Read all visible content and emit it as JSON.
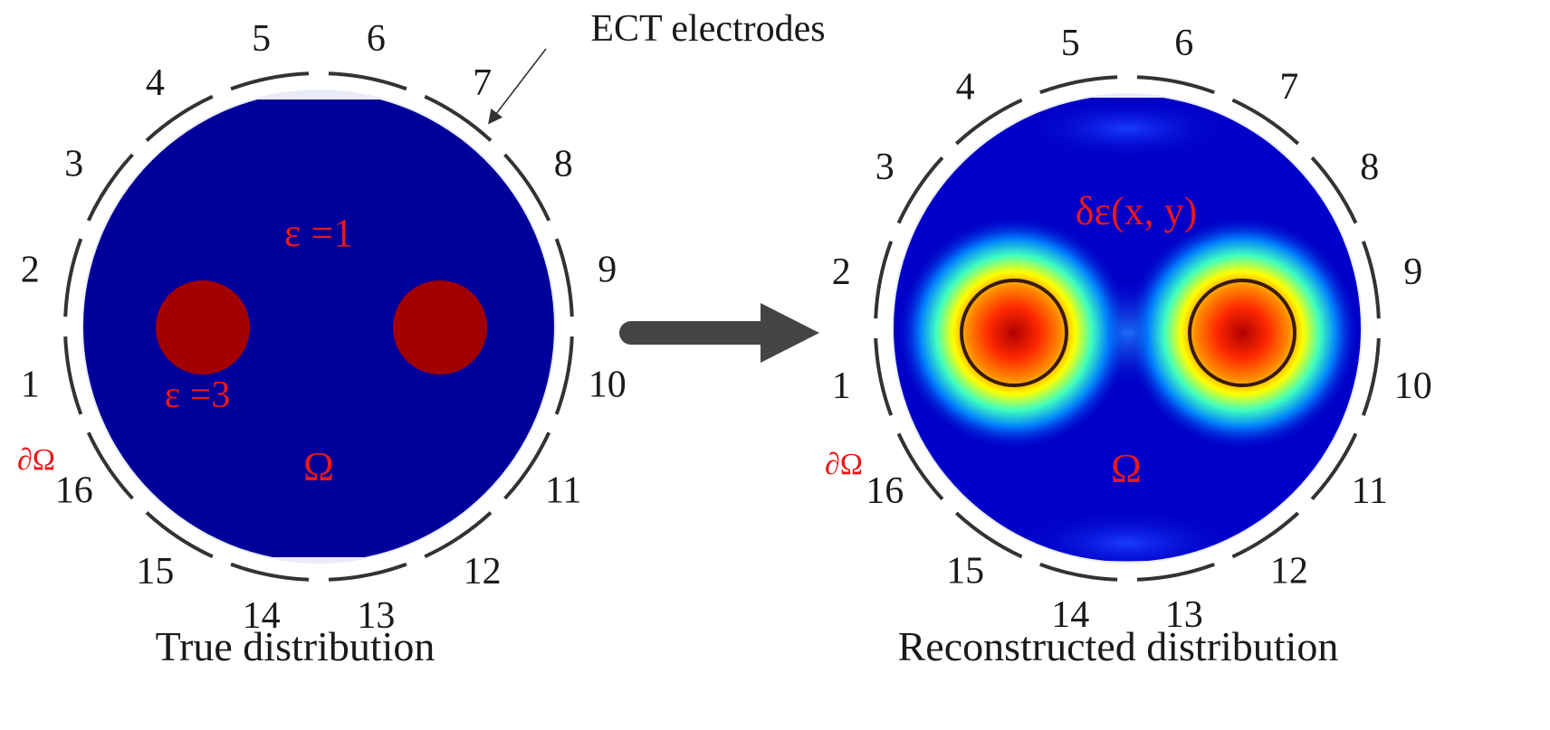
{
  "callout": {
    "text": "ECT electrodes"
  },
  "left_panel": {
    "caption": "True distribution",
    "background_label": "ε =1",
    "inclusion_label": "ε =3",
    "domain_label": "Ω",
    "boundary_label": "∂Ω"
  },
  "right_panel": {
    "caption": "Reconstructed distribution",
    "field_label": "δε(x, y)",
    "domain_label": "Ω",
    "boundary_label": "∂Ω"
  },
  "electrodes": {
    "labels": [
      "1",
      "2",
      "3",
      "4",
      "5",
      "6",
      "7",
      "8",
      "9",
      "10",
      "11",
      "12",
      "13",
      "14",
      "15",
      "16"
    ]
  },
  "colors": {
    "background_blue": "#00009a",
    "inclusion_red": "#a30000",
    "label_red": "#e8191a",
    "arrow": "#444444",
    "electrode": "#333333"
  }
}
